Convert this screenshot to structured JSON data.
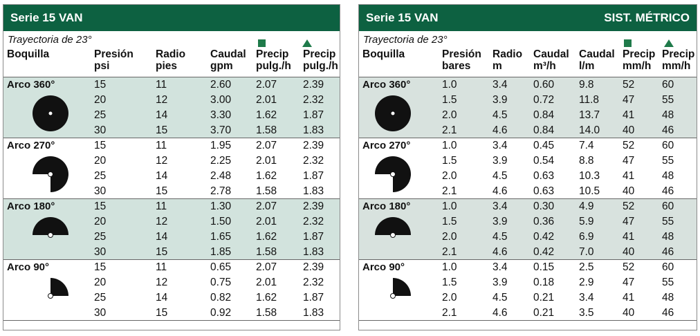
{
  "imperial": {
    "title": "Serie 15 VAN",
    "subtitle": "Trayectoria de 23°",
    "headers": [
      "Boquilla",
      "Presión\npsi",
      "Radio\npies",
      "Caudal\ngpm",
      "Precip\npulg./h",
      "Precip\npulg./h"
    ],
    "groups": [
      {
        "arc": "Arco 360°",
        "rows": [
          [
            "15",
            "11",
            "2.60",
            "2.07",
            "2.39"
          ],
          [
            "20",
            "12",
            "3.00",
            "2.01",
            "2.32"
          ],
          [
            "25",
            "14",
            "3.30",
            "1.62",
            "1.87"
          ],
          [
            "30",
            "15",
            "3.70",
            "1.58",
            "1.83"
          ]
        ]
      },
      {
        "arc": "Arco 270°",
        "rows": [
          [
            "15",
            "11",
            "1.95",
            "2.07",
            "2.39"
          ],
          [
            "20",
            "12",
            "2.25",
            "2.01",
            "2.32"
          ],
          [
            "25",
            "14",
            "2.48",
            "1.62",
            "1.87"
          ],
          [
            "30",
            "15",
            "2.78",
            "1.58",
            "1.83"
          ]
        ]
      },
      {
        "arc": "Arco 180°",
        "rows": [
          [
            "15",
            "11",
            "1.30",
            "2.07",
            "2.39"
          ],
          [
            "20",
            "12",
            "1.50",
            "2.01",
            "2.32"
          ],
          [
            "25",
            "14",
            "1.65",
            "1.62",
            "1.87"
          ],
          [
            "30",
            "15",
            "1.85",
            "1.58",
            "1.83"
          ]
        ]
      },
      {
        "arc": "Arco 90°",
        "rows": [
          [
            "15",
            "11",
            "0.65",
            "2.07",
            "2.39"
          ],
          [
            "20",
            "12",
            "0.75",
            "2.01",
            "2.32"
          ],
          [
            "25",
            "14",
            "0.82",
            "1.62",
            "1.87"
          ],
          [
            "30",
            "15",
            "0.92",
            "1.58",
            "1.83"
          ]
        ]
      }
    ]
  },
  "metric": {
    "title": "Serie 15 VAN",
    "title_right": "SIST. MÉTRICO",
    "subtitle": "Trayectoria de 23°",
    "headers": [
      "Boquilla",
      "Presión\nbares",
      "Radio\nm",
      "Caudal\nm³/h",
      "Caudal\nl/m",
      "Precip\nmm/h",
      "Precip\nmm/h"
    ],
    "groups": [
      {
        "arc": "Arco 360°",
        "rows": [
          [
            "1.0",
            "3.4",
            "0.60",
            "9.8",
            "52",
            "60"
          ],
          [
            "1.5",
            "3.9",
            "0.72",
            "11.8",
            "47",
            "55"
          ],
          [
            "2.0",
            "4.5",
            "0.84",
            "13.7",
            "41",
            "48"
          ],
          [
            "2.1",
            "4.6",
            "0.84",
            "14.0",
            "40",
            "46"
          ]
        ]
      },
      {
        "arc": "Arco 270°",
        "rows": [
          [
            "1.0",
            "3.4",
            "0.45",
            "7.4",
            "52",
            "60"
          ],
          [
            "1.5",
            "3.9",
            "0.54",
            "8.8",
            "47",
            "55"
          ],
          [
            "2.0",
            "4.5",
            "0.63",
            "10.3",
            "41",
            "48"
          ],
          [
            "2.1",
            "4.6",
            "0.63",
            "10.5",
            "40",
            "46"
          ]
        ]
      },
      {
        "arc": "Arco 180°",
        "rows": [
          [
            "1.0",
            "3.4",
            "0.30",
            "4.9",
            "52",
            "60"
          ],
          [
            "1.5",
            "3.9",
            "0.36",
            "5.9",
            "47",
            "55"
          ],
          [
            "2.0",
            "4.5",
            "0.42",
            "6.9",
            "41",
            "48"
          ],
          [
            "2.1",
            "4.6",
            "0.42",
            "7.0",
            "40",
            "46"
          ]
        ]
      },
      {
        "arc": "Arco 90°",
        "rows": [
          [
            "1.0",
            "3.4",
            "0.15",
            "2.5",
            "52",
            "60"
          ],
          [
            "1.5",
            "3.9",
            "0.18",
            "2.9",
            "47",
            "55"
          ],
          [
            "2.0",
            "4.5",
            "0.21",
            "3.4",
            "41",
            "48"
          ],
          [
            "2.1",
            "4.6",
            "0.21",
            "3.5",
            "40",
            "46"
          ]
        ]
      }
    ]
  },
  "colors": {
    "header_green": "#0d6141",
    "shade": "#d2e3dd",
    "marker_green": "#1f7a4a"
  },
  "icons": [
    "square-marker-icon",
    "triangle-marker-icon",
    "arc-360-icon",
    "arc-270-icon",
    "arc-180-icon",
    "arc-90-icon"
  ]
}
